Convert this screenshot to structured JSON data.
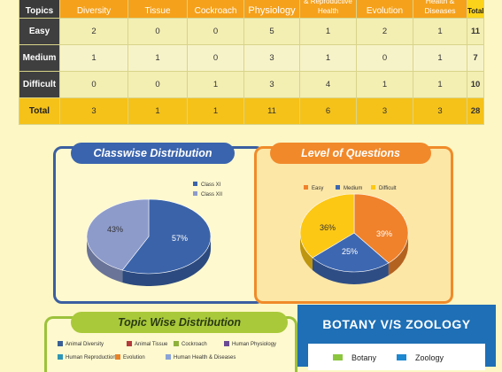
{
  "table": {
    "corner_label": "Topics",
    "columns": [
      "Diversity",
      "Tissue",
      "Cockroach",
      "Physiology",
      "& Reproductive Health",
      "Evolution",
      "Health & Diseases",
      "Total"
    ],
    "rows": [
      {
        "label": "Easy",
        "values": [
          "2",
          "0",
          "0",
          "5",
          "1",
          "2",
          "1",
          "11"
        ]
      },
      {
        "label": "Medium",
        "values": [
          "1",
          "1",
          "0",
          "3",
          "1",
          "0",
          "1",
          "7"
        ]
      },
      {
        "label": "Difficult",
        "values": [
          "0",
          "0",
          "1",
          "3",
          "4",
          "1",
          "1",
          "10"
        ]
      },
      {
        "label": "Total",
        "values": [
          "3",
          "1",
          "1",
          "11",
          "6",
          "3",
          "3",
          "28"
        ]
      }
    ]
  },
  "chart_data": [
    {
      "type": "pie",
      "title": "Classwise Distribution",
      "categories": [
        "Class XI",
        "Class XII"
      ],
      "values": [
        57,
        43
      ],
      "value_labels": [
        "57%",
        "43%"
      ],
      "colors": [
        "#3b63a9",
        "#8d9bcb"
      ],
      "legend_position": "top-right"
    },
    {
      "type": "pie",
      "title": "Level of Questions",
      "categories": [
        "Easy",
        "Medium",
        "Difficult"
      ],
      "values": [
        39,
        25,
        36
      ],
      "value_labels": [
        "39%",
        "25%",
        "36%"
      ],
      "colors": [
        "#f0822b",
        "#3d67b1",
        "#fdc814"
      ],
      "legend_position": "top"
    }
  ],
  "topic_panel": {
    "title": "Topic Wise Distribution",
    "legend": [
      {
        "label": "Animal Diversity",
        "color": "#3a5f95"
      },
      {
        "label": "Animal Tissue",
        "color": "#b23b3b"
      },
      {
        "label": "Cockroach",
        "color": "#8fb13a"
      },
      {
        "label": "Human Physiology",
        "color": "#6a4a92"
      },
      {
        "label": "Human Reproduction",
        "color": "#2f95b5"
      },
      {
        "label": "Evolution",
        "color": "#e8832a"
      },
      {
        "label": "Human Health & Diseases",
        "color": "#8aa3d8"
      }
    ]
  },
  "botany_panel": {
    "title": "BOTANY V/S ZOOLOGY",
    "legend": [
      {
        "label": "Botany",
        "color": "#8cc63f"
      },
      {
        "label": "Zoology",
        "color": "#1e88d0"
      }
    ]
  }
}
